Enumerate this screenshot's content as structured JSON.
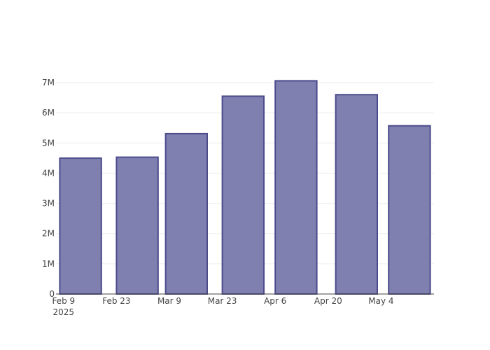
{
  "chart_data": {
    "type": "bar",
    "title": "",
    "xlabel": "",
    "ylabel": "",
    "x": [
      "2025-02-09",
      "2025-02-23",
      "2025-03-09",
      "2025-03-23",
      "2025-04-06",
      "2025-04-20",
      "2025-05-04"
    ],
    "bar_start": [
      "2025-02-08",
      "2025-02-23",
      "2025-03-08",
      "2025-03-23",
      "2025-04-06",
      "2025-04-22",
      "2025-05-06"
    ],
    "bar_end": [
      "2025-02-19",
      "2025-03-06",
      "2025-03-19",
      "2025-04-03",
      "2025-04-17",
      "2025-05-03",
      "2025-05-17"
    ],
    "values": [
      4500000,
      4530000,
      5310000,
      6550000,
      7060000,
      6600000,
      5570000
    ],
    "x_ticks": [
      {
        "date": "2025-02-09",
        "label": "Feb 9",
        "sublabel": "2025"
      },
      {
        "date": "2025-02-23",
        "label": "Feb 23",
        "sublabel": ""
      },
      {
        "date": "2025-03-09",
        "label": "Mar 9",
        "sublabel": ""
      },
      {
        "date": "2025-03-23",
        "label": "Mar 23",
        "sublabel": ""
      },
      {
        "date": "2025-04-06",
        "label": "Apr 6",
        "sublabel": ""
      },
      {
        "date": "2025-04-20",
        "label": "Apr 20",
        "sublabel": ""
      },
      {
        "date": "2025-05-04",
        "label": "May 4",
        "sublabel": ""
      }
    ],
    "y_ticks": [
      {
        "value": 0,
        "label": "0"
      },
      {
        "value": 1000000,
        "label": "1M"
      },
      {
        "value": 2000000,
        "label": "2M"
      },
      {
        "value": 3000000,
        "label": "3M"
      },
      {
        "value": 4000000,
        "label": "4M"
      },
      {
        "value": 5000000,
        "label": "5M"
      },
      {
        "value": 6000000,
        "label": "6M"
      },
      {
        "value": 7000000,
        "label": "7M"
      }
    ],
    "xlim": [
      "2025-02-07",
      "2025-05-18"
    ],
    "ylim": [
      0,
      7000000
    ],
    "grid": true,
    "legend": "none",
    "colors": {
      "bar_fill": "#7f7fb0",
      "bar_stroke": "#4b4b8c"
    }
  }
}
